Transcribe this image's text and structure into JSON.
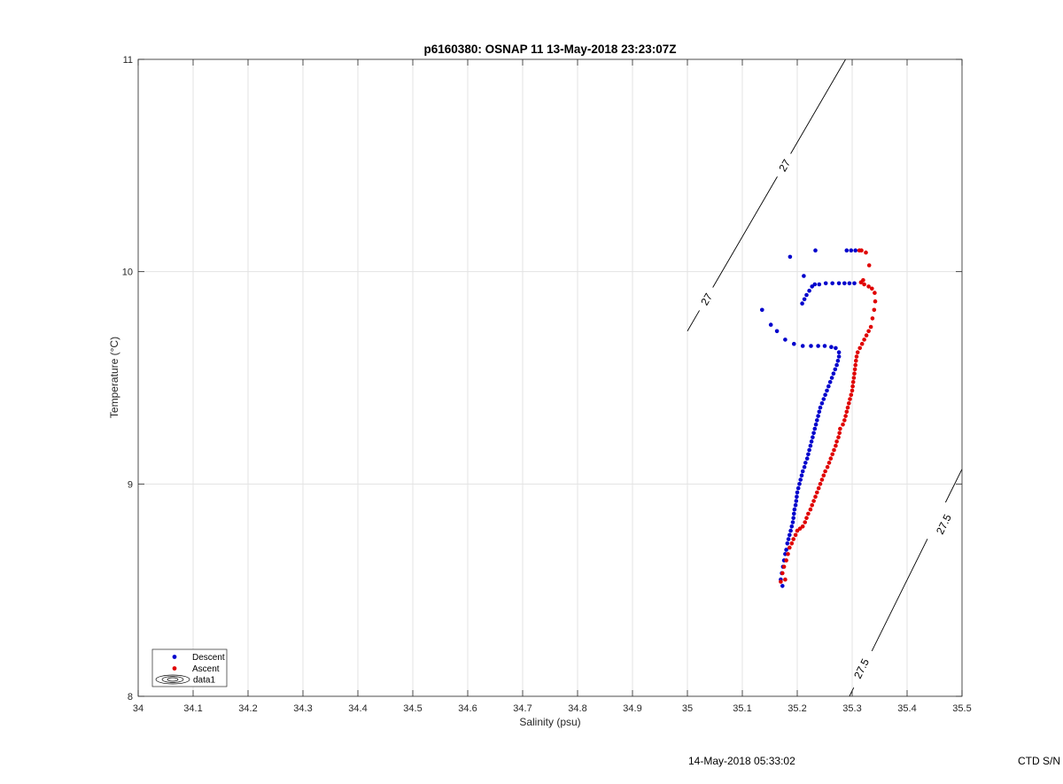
{
  "chart_data": {
    "type": "scatter",
    "title": "p6160380: OSNAP 11 13-May-2018 23:23:07Z",
    "xlabel": "Salinity (psu)",
    "ylabel": "Temperature (°C)",
    "xlim": [
      34,
      35.5
    ],
    "ylim": [
      8,
      11
    ],
    "xticks": [
      "34",
      "34.1",
      "34.2",
      "34.3",
      "34.4",
      "34.5",
      "34.6",
      "34.7",
      "34.8",
      "34.9",
      "35",
      "35.1",
      "35.2",
      "35.3",
      "35.4",
      "35.5"
    ],
    "yticks": [
      "8",
      "9",
      "10",
      "11"
    ],
    "grid": true,
    "legend": {
      "placement": "bottom-left",
      "entries": [
        "Descent",
        "Ascent",
        "data1"
      ]
    },
    "contours": [
      {
        "level": "27",
        "points": [
          [
            35.0,
            9.72
          ],
          [
            35.288,
            11.0
          ]
        ],
        "labels": [
          [
            35.035,
            9.87
          ],
          [
            35.177,
            10.5
          ]
        ]
      },
      {
        "level": "27.5",
        "points": [
          [
            35.295,
            8.0
          ],
          [
            35.5,
            9.07
          ]
        ],
        "labels": [
          [
            35.317,
            8.13
          ],
          [
            35.467,
            8.81
          ]
        ]
      }
    ],
    "series": [
      {
        "name": "Descent",
        "color": "#0000cc",
        "points": [
          [
            35.173,
            8.52
          ],
          [
            35.17,
            8.55
          ],
          [
            35.172,
            8.58
          ],
          [
            35.174,
            8.61
          ],
          [
            35.176,
            8.64
          ],
          [
            35.178,
            8.67
          ],
          [
            35.18,
            8.69
          ],
          [
            35.182,
            8.72
          ],
          [
            35.184,
            8.74
          ],
          [
            35.186,
            8.76
          ],
          [
            35.188,
            8.78
          ],
          [
            35.19,
            8.8
          ],
          [
            35.192,
            8.82
          ],
          [
            35.193,
            8.84
          ],
          [
            35.194,
            8.86
          ],
          [
            35.195,
            8.88
          ],
          [
            35.197,
            8.9
          ],
          [
            35.198,
            8.92
          ],
          [
            35.199,
            8.94
          ],
          [
            35.2,
            8.96
          ],
          [
            35.202,
            8.98
          ],
          [
            35.204,
            9.0
          ],
          [
            35.206,
            9.02
          ],
          [
            35.208,
            9.04
          ],
          [
            35.21,
            9.06
          ],
          [
            35.213,
            9.08
          ],
          [
            35.215,
            9.1
          ],
          [
            35.218,
            9.12
          ],
          [
            35.22,
            9.14
          ],
          [
            35.222,
            9.16
          ],
          [
            35.224,
            9.18
          ],
          [
            35.226,
            9.2
          ],
          [
            35.228,
            9.22
          ],
          [
            35.23,
            9.24
          ],
          [
            35.232,
            9.26
          ],
          [
            35.234,
            9.28
          ],
          [
            35.236,
            9.3
          ],
          [
            35.238,
            9.32
          ],
          [
            35.24,
            9.34
          ],
          [
            35.242,
            9.36
          ],
          [
            35.245,
            9.38
          ],
          [
            35.248,
            9.4
          ],
          [
            35.251,
            9.42
          ],
          [
            35.254,
            9.44
          ],
          [
            35.257,
            9.46
          ],
          [
            35.26,
            9.48
          ],
          [
            35.263,
            9.5
          ],
          [
            35.266,
            9.52
          ],
          [
            35.269,
            9.54
          ],
          [
            35.272,
            9.56
          ],
          [
            35.274,
            9.58
          ],
          [
            35.276,
            9.6
          ],
          [
            35.276,
            9.62
          ],
          [
            35.27,
            9.64
          ],
          [
            35.262,
            9.645
          ],
          [
            35.25,
            9.65
          ],
          [
            35.238,
            9.65
          ],
          [
            35.225,
            9.65
          ],
          [
            35.21,
            9.65
          ],
          [
            35.194,
            9.66
          ],
          [
            35.178,
            9.68
          ],
          [
            35.163,
            9.72
          ],
          [
            35.152,
            9.75
          ],
          [
            35.136,
            9.82
          ],
          [
            35.209,
            9.85
          ],
          [
            35.213,
            9.87
          ],
          [
            35.217,
            9.89
          ],
          [
            35.222,
            9.91
          ],
          [
            35.227,
            9.93
          ],
          [
            35.232,
            9.94
          ],
          [
            35.24,
            9.94
          ],
          [
            35.252,
            9.945
          ],
          [
            35.264,
            9.945
          ],
          [
            35.276,
            9.945
          ],
          [
            35.286,
            9.945
          ],
          [
            35.295,
            9.945
          ],
          [
            35.304,
            9.945
          ],
          [
            35.212,
            9.98
          ],
          [
            35.187,
            10.07
          ],
          [
            35.233,
            10.1
          ],
          [
            35.29,
            10.1
          ],
          [
            35.298,
            10.1
          ],
          [
            35.306,
            10.1
          ]
        ]
      },
      {
        "name": "Ascent",
        "color": "#e00000",
        "points": [
          [
            35.17,
            8.54
          ],
          [
            35.178,
            8.55
          ],
          [
            35.173,
            8.58
          ],
          [
            35.176,
            8.61
          ],
          [
            35.18,
            8.64
          ],
          [
            35.183,
            8.67
          ],
          [
            35.186,
            8.7
          ],
          [
            35.19,
            8.72
          ],
          [
            35.193,
            8.74
          ],
          [
            35.197,
            8.76
          ],
          [
            35.2,
            8.78
          ],
          [
            35.205,
            8.79
          ],
          [
            35.21,
            8.8
          ],
          [
            35.214,
            8.82
          ],
          [
            35.217,
            8.84
          ],
          [
            35.22,
            8.86
          ],
          [
            35.224,
            8.88
          ],
          [
            35.227,
            8.9
          ],
          [
            35.23,
            8.92
          ],
          [
            35.233,
            8.94
          ],
          [
            35.236,
            8.96
          ],
          [
            35.239,
            8.98
          ],
          [
            35.242,
            9.0
          ],
          [
            35.245,
            9.02
          ],
          [
            35.248,
            9.04
          ],
          [
            35.251,
            9.06
          ],
          [
            35.255,
            9.08
          ],
          [
            35.258,
            9.1
          ],
          [
            35.261,
            9.12
          ],
          [
            35.264,
            9.14
          ],
          [
            35.267,
            9.16
          ],
          [
            35.27,
            9.18
          ],
          [
            35.272,
            9.2
          ],
          [
            35.275,
            9.22
          ],
          [
            35.277,
            9.24
          ],
          [
            35.278,
            9.26
          ],
          [
            35.283,
            9.28
          ],
          [
            35.286,
            9.3
          ],
          [
            35.288,
            9.32
          ],
          [
            35.29,
            9.34
          ],
          [
            35.292,
            9.36
          ],
          [
            35.294,
            9.38
          ],
          [
            35.296,
            9.4
          ],
          [
            35.298,
            9.42
          ],
          [
            35.3,
            9.44
          ],
          [
            35.301,
            9.46
          ],
          [
            35.302,
            9.48
          ],
          [
            35.303,
            9.5
          ],
          [
            35.304,
            9.52
          ],
          [
            35.305,
            9.54
          ],
          [
            35.306,
            9.56
          ],
          [
            35.307,
            9.58
          ],
          [
            35.308,
            9.6
          ],
          [
            35.31,
            9.62
          ],
          [
            35.314,
            9.64
          ],
          [
            35.318,
            9.66
          ],
          [
            35.322,
            9.68
          ],
          [
            35.326,
            9.7
          ],
          [
            35.33,
            9.72
          ],
          [
            35.334,
            9.74
          ],
          [
            35.337,
            9.78
          ],
          [
            35.34,
            9.82
          ],
          [
            35.342,
            9.86
          ],
          [
            35.341,
            9.9
          ],
          [
            35.336,
            9.92
          ],
          [
            35.33,
            9.93
          ],
          [
            35.322,
            9.94
          ],
          [
            35.316,
            9.95
          ],
          [
            35.32,
            9.96
          ],
          [
            35.331,
            10.03
          ],
          [
            35.325,
            10.09
          ],
          [
            35.317,
            10.1
          ],
          [
            35.313,
            10.1
          ]
        ]
      }
    ]
  },
  "footer": {
    "date_text": "14-May-2018 05:33:02",
    "ctd_text": "CTD S/N"
  }
}
